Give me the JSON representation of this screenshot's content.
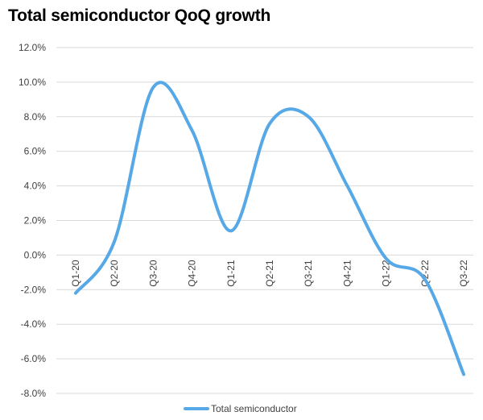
{
  "chart_data": {
    "type": "line",
    "title": "Total semiconductor QoQ growth",
    "xlabel": "",
    "ylabel": "",
    "categories": [
      "Q1-20",
      "Q2-20",
      "Q3-20",
      "Q4-20",
      "Q1-21",
      "Q2-21",
      "Q3-21",
      "Q4-21",
      "Q1-22",
      "Q2-22",
      "Q3-22"
    ],
    "y_ticks": [
      "12.0%",
      "10.0%",
      "8.0%",
      "6.0%",
      "4.0%",
      "2.0%",
      "0.0%",
      "-2.0%",
      "-4.0%",
      "-6.0%",
      "-8.0%"
    ],
    "ylim": [
      -8,
      12
    ],
    "grid": true,
    "legend_position": "bottom",
    "series": [
      {
        "name": "Total semiconductor",
        "color": "#56a8e6",
        "values": [
          -2.2,
          0.8,
          9.7,
          7.2,
          1.4,
          7.6,
          8.0,
          4.0,
          -0.2,
          -1.4,
          -6.9
        ]
      }
    ]
  }
}
